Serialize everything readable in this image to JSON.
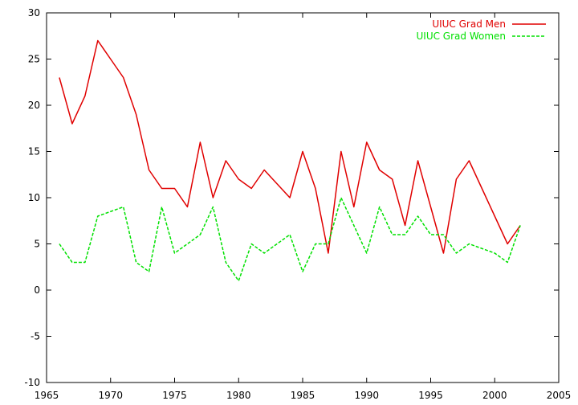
{
  "chart_data": {
    "type": "line",
    "title": "",
    "xlabel": "",
    "ylabel": "",
    "xlim": [
      1965,
      2005
    ],
    "ylim": [
      -10,
      30
    ],
    "xticks": [
      1965,
      1970,
      1975,
      1980,
      1985,
      1990,
      1995,
      2000,
      2005
    ],
    "yticks": [
      -10,
      -5,
      0,
      5,
      10,
      15,
      20,
      25,
      30
    ],
    "grid": false,
    "legend_position": "top-right",
    "x": [
      1966,
      1967,
      1968,
      1969,
      1970,
      1971,
      1972,
      1973,
      1974,
      1975,
      1976,
      1977,
      1978,
      1979,
      1980,
      1981,
      1982,
      1983,
      1984,
      1985,
      1986,
      1987,
      1988,
      1989,
      1990,
      1991,
      1992,
      1993,
      1994,
      1995,
      1996,
      1997,
      1998,
      1999,
      2000,
      2001,
      2002
    ],
    "series": [
      {
        "name": "UIUC Grad Men",
        "color": "#e00000",
        "dash": "solid",
        "values": [
          23,
          18,
          21,
          27,
          25,
          23,
          19,
          13,
          11,
          11,
          9,
          16,
          10,
          14,
          12,
          11,
          13,
          11.5,
          10,
          15,
          11,
          4,
          15,
          9,
          16,
          13,
          12,
          7,
          14,
          9,
          4,
          12,
          14,
          11,
          8,
          5,
          7
        ]
      },
      {
        "name": "UIUC Grad Women",
        "color": "#00e000",
        "dash": "dashed",
        "values": [
          5,
          3,
          3,
          8,
          8.5,
          9,
          3,
          2,
          9,
          4,
          5,
          6,
          9,
          3,
          1,
          5,
          4,
          5,
          6,
          2,
          5,
          5,
          10,
          7,
          4,
          9,
          6,
          6,
          8,
          6,
          6,
          4,
          5,
          4.5,
          4,
          3,
          7
        ]
      }
    ]
  }
}
